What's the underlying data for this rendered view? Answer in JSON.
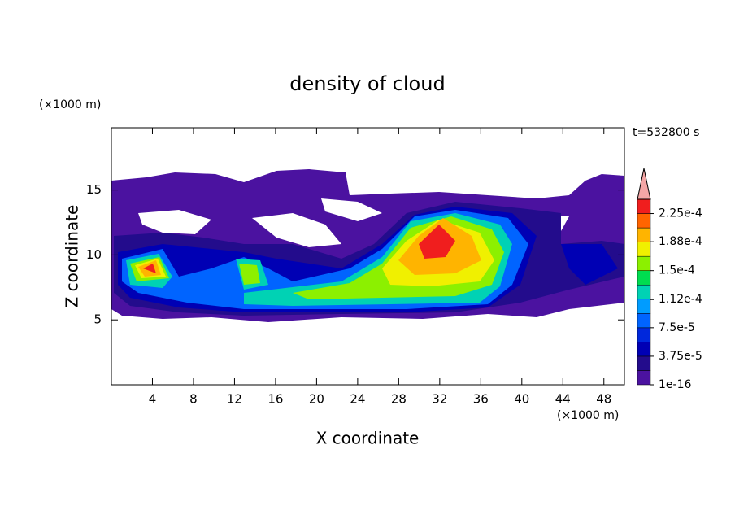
{
  "chart_data": {
    "type": "contour",
    "title": "density of cloud",
    "xlabel": "X coordinate",
    "ylabel": "Z coordinate",
    "x_unit": "(×1000 m)",
    "y_unit": "(×1000 m)",
    "time_label": "t=532800 s",
    "xlim": [
      0,
      50
    ],
    "ylim": [
      0,
      19.8
    ],
    "xticks": [
      4,
      8,
      12,
      16,
      20,
      24,
      28,
      32,
      36,
      40,
      44,
      48
    ],
    "yticks": [
      5,
      10,
      15
    ],
    "colorbar": {
      "clim": [
        1e-16,
        0.00024375
      ],
      "colors": [
        "#4b12a0",
        "#230c8c",
        "#0000b4",
        "#0028dc",
        "#0064ff",
        "#009cff",
        "#00d2b4",
        "#00dc50",
        "#8cf000",
        "#f0f000",
        "#ffb400",
        "#ff6400",
        "#f01e1e"
      ],
      "extend_color": "#f4a6a6",
      "ticks": [
        {
          "value": 1e-16,
          "label": "1e-16"
        },
        {
          "value": 3.75e-05,
          "label": "3.75e-5"
        },
        {
          "value": 7.5e-05,
          "label": "7.5e-5"
        },
        {
          "value": 0.000112,
          "label": "1.12e-4"
        },
        {
          "value": 0.00015,
          "label": "1.5e-4"
        },
        {
          "value": 0.000188,
          "label": "1.88e-4"
        },
        {
          "value": 0.000225,
          "label": "2.25e-4"
        }
      ]
    }
  }
}
